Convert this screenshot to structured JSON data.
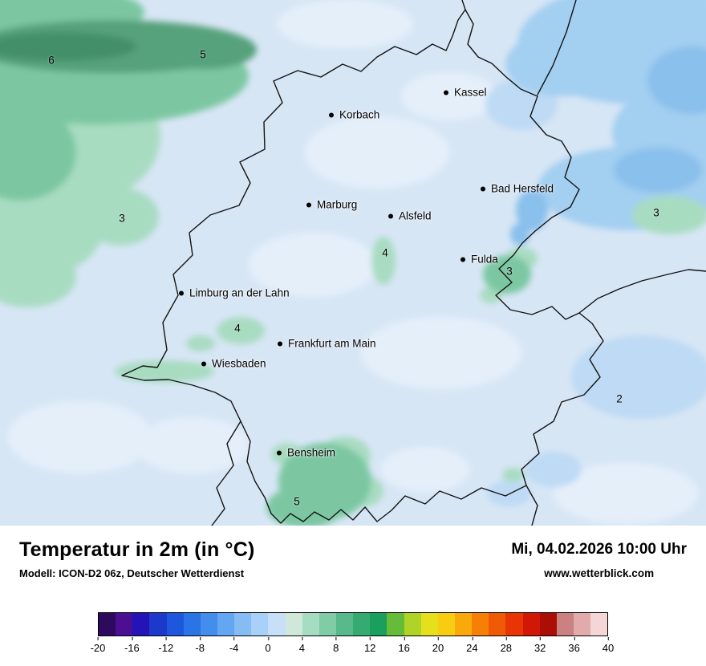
{
  "map": {
    "palette": {
      "base": "#d7e6f5",
      "pale": "#e5effa",
      "blue_soft": "#bedaf4",
      "blue_mid": "#a3cff1",
      "blue_deep": "#8ac0ec",
      "green_light": "#a8dcc1",
      "green_mid": "#7cc7a2",
      "green_dark": "#57a27b",
      "green_darker": "#438f6a",
      "border": "#141414"
    },
    "cities": [
      {
        "name": "Kassel"
      },
      {
        "name": "Korbach"
      },
      {
        "name": "Marburg"
      },
      {
        "name": "Alsfeld"
      },
      {
        "name": "Bad Hersfeld"
      },
      {
        "name": "Fulda"
      },
      {
        "name": "Limburg an der Lahn"
      },
      {
        "name": "Frankfurt am Main"
      },
      {
        "name": "Wiesbaden"
      },
      {
        "name": "Bensheim"
      }
    ],
    "temperature_values": [
      {
        "value": "6"
      },
      {
        "value": "5"
      },
      {
        "value": "3"
      },
      {
        "value": "4"
      },
      {
        "value": "3"
      },
      {
        "value": "3"
      },
      {
        "value": "4"
      },
      {
        "value": "2"
      },
      {
        "value": "5"
      }
    ]
  },
  "footer": {
    "title": "Temperatur in 2m (in °C)",
    "model": "Modell: ICON-D2 06z, Deutscher Wetterdienst",
    "datetime": "Mi, 04.02.2026 10:00 Uhr",
    "website": "www.wetterblick.com"
  },
  "colorbar": {
    "unit": "°C",
    "min": -20,
    "max": 40,
    "step_per_segment": 2,
    "ticks": [
      "-20",
      "-16",
      "-12",
      "-8",
      "-4",
      "0",
      "4",
      "8",
      "12",
      "16",
      "20",
      "24",
      "28",
      "32",
      "36",
      "40"
    ],
    "colors": [
      "#2d0a5e",
      "#4a0f92",
      "#2413b6",
      "#1c39cc",
      "#1e57dd",
      "#2b74e6",
      "#448ded",
      "#63a6f1",
      "#86bcf4",
      "#a9d0f6",
      "#c8e0f7",
      "#cfe8da",
      "#a6dcc1",
      "#7fcca6",
      "#58b98a",
      "#35ab72",
      "#1aa05c",
      "#66bc38",
      "#b0d328",
      "#e6e01c",
      "#f8cd11",
      "#f9a90c",
      "#f68006",
      "#f05905",
      "#e73505",
      "#d11806",
      "#aa0e04",
      "#ca8181",
      "#e2abab",
      "#f5d6d6"
    ]
  }
}
